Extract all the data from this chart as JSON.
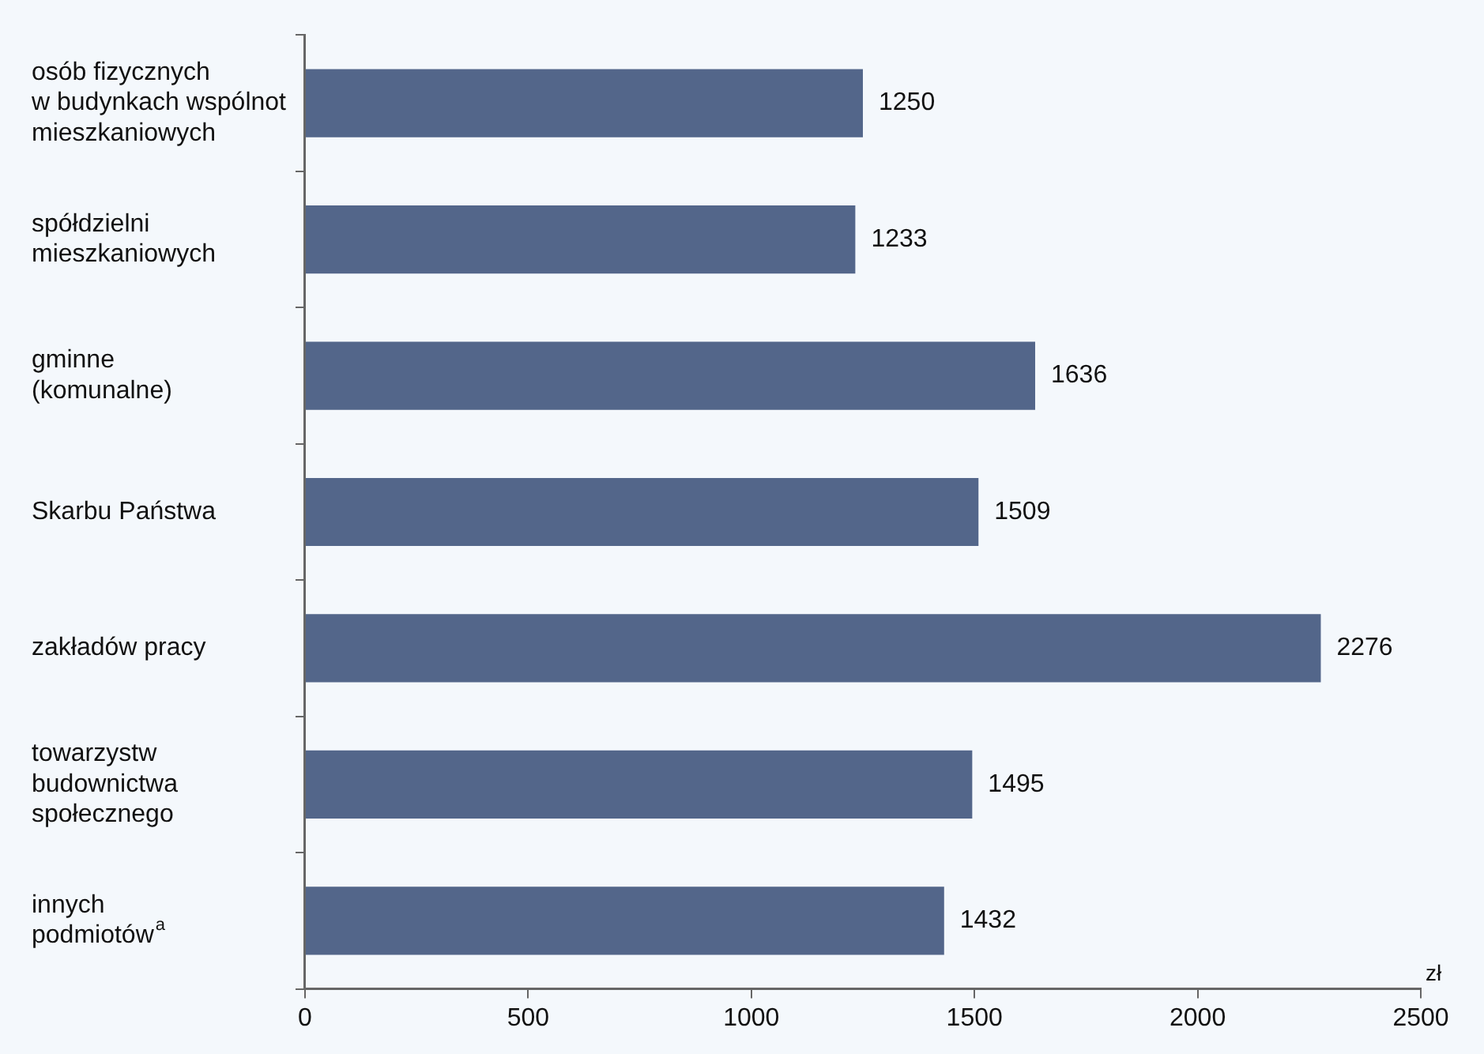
{
  "chart_data": {
    "type": "bar",
    "orientation": "horizontal",
    "xlabel": "zł",
    "categories": [
      "osób fizycznych\nw budynkach wspólnot\nmieszkaniowych",
      "spółdzielni\nmieszkaniowych",
      "gminne\n(komunalne)",
      "Skarbu Państwa",
      "zakładów pracy",
      "towarzystw\nbudownictwa\nspołecznego",
      "innych\npodmiotów$^{a}$"
    ],
    "values": [
      1250,
      1233,
      1636,
      1509,
      2276,
      1495,
      1432
    ],
    "color": "#53668a",
    "xlim": [
      0,
      2500
    ],
    "xticks": [
      0,
      500,
      1000,
      1500,
      2000,
      2500
    ],
    "data_labels": true,
    "grid": false,
    "legend": false
  }
}
